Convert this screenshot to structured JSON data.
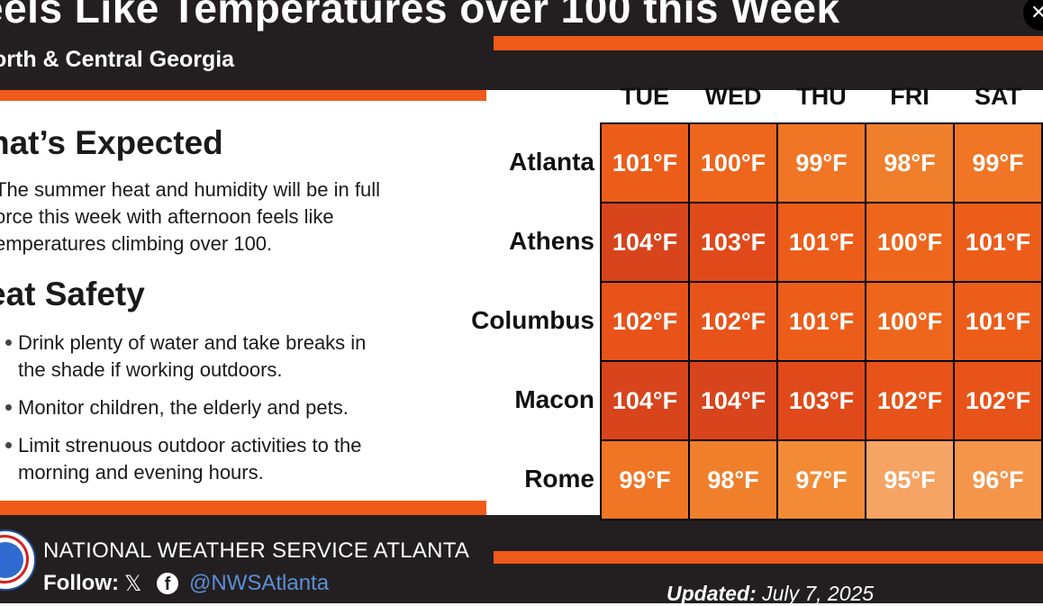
{
  "header": {
    "title": "eels Like Temperatures over 100 this Week",
    "subtitle": "orth & Central Georgia"
  },
  "left": {
    "expected_heading": "hat’s Expected",
    "expected_lines": [
      "The summer heat and humidity will be in full",
      "orce this week with afternoon feels like",
      "emperatures climbing over 100."
    ],
    "safety_heading": "eat Safety",
    "bullets": [
      [
        "Drink plenty of water and take breaks in",
        "the shade if working outdoors."
      ],
      [
        "Monitor children, the elderly and pets."
      ],
      [
        "Limit strenuous outdoor activities to the",
        "morning and evening hours."
      ]
    ]
  },
  "table": {
    "days": [
      "TUE",
      "WED",
      "THU",
      "FRI",
      "SAT"
    ],
    "rows": [
      {
        "city": "Atlanta",
        "values": [
          "101°F",
          "100°F",
          "99°F",
          "98°F",
          "99°F"
        ],
        "colors": [
          "#ec5d1a",
          "#ee661c",
          "#f07524",
          "#f07f2c",
          "#f07524"
        ]
      },
      {
        "city": "Athens",
        "values": [
          "104°F",
          "103°F",
          "101°F",
          "100°F",
          "101°F"
        ],
        "colors": [
          "#d8441b",
          "#e04a1a",
          "#ec5d1a",
          "#ee661c",
          "#ec5d1a"
        ]
      },
      {
        "city": "Columbus",
        "values": [
          "102°F",
          "102°F",
          "101°F",
          "100°F",
          "101°F"
        ],
        "colors": [
          "#e85319",
          "#e85319",
          "#ec5d1a",
          "#ee661c",
          "#ec5d1a"
        ]
      },
      {
        "city": "Macon",
        "values": [
          "104°F",
          "104°F",
          "103°F",
          "102°F",
          "102°F"
        ],
        "colors": [
          "#d8441b",
          "#d8441b",
          "#e04a1a",
          "#e85319",
          "#e85319"
        ]
      },
      {
        "city": "Rome",
        "values": [
          "99°F",
          "98°F",
          "97°F",
          "95°F",
          "96°F"
        ],
        "colors": [
          "#f07524",
          "#f07f2c",
          "#f38a36",
          "#f5a464",
          "#f4954a"
        ]
      }
    ]
  },
  "footer": {
    "agency": "NATIONAL WEATHER SERVICE ATLANTA",
    "follow_label": "Follow:",
    "x_icon": "𝕏",
    "fb_icon": "f",
    "handle": "@NWSAtlanta",
    "updated_label": "Updated:",
    "updated_date": "July 7, 2025"
  },
  "close_icon": "✕"
}
